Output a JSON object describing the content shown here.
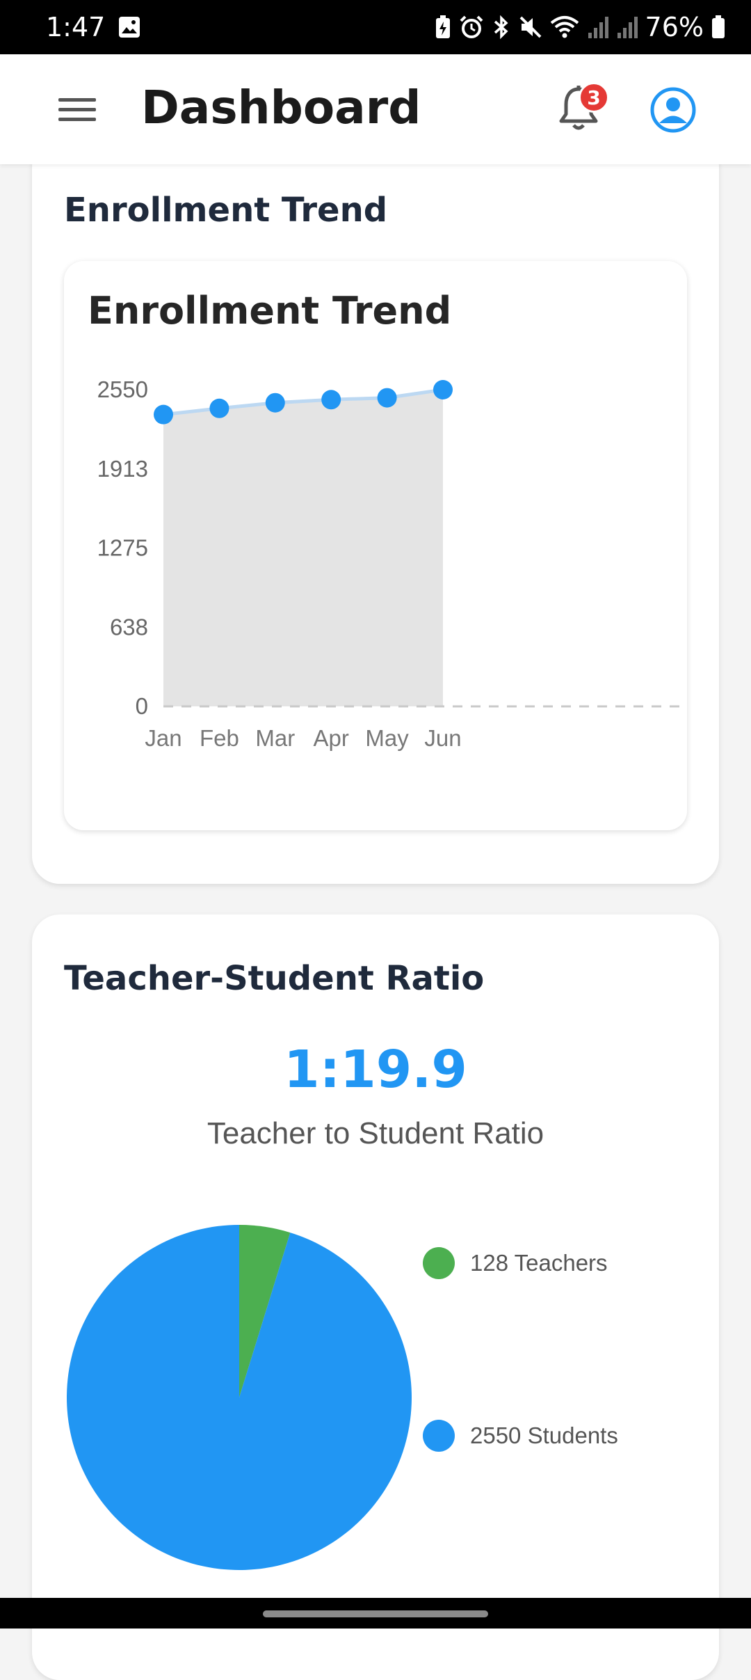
{
  "status_bar": {
    "time": "1:47",
    "battery": "76%",
    "icons": [
      "image-icon",
      "battery-saver-icon",
      "alarm-icon",
      "bluetooth-icon",
      "mute-icon",
      "wifi-icon",
      "signal-icon",
      "signal-icon",
      "battery-icon"
    ]
  },
  "app_bar": {
    "title": "Dashboard",
    "notification_count": "3",
    "icons": [
      "menu-icon",
      "bell-icon",
      "account-icon"
    ]
  },
  "enrollment": {
    "section_title": "Enrollment Trend",
    "chart_title": "Enrollment Trend"
  },
  "ratio": {
    "section_title": "Teacher-Student Ratio",
    "value": "1:19.9",
    "caption": "Teacher to Student Ratio",
    "legend": [
      {
        "label": "128 Teachers",
        "color": "#4caf50"
      },
      {
        "label": "2550 Students",
        "color": "#2196f3"
      }
    ]
  },
  "colors": {
    "accent": "#2196f3",
    "teacher_green": "#4caf50",
    "badge_red": "#e53935",
    "area_fill": "#e4e4e4"
  },
  "chart_data": [
    {
      "type": "area",
      "title": "Enrollment Trend",
      "categories": [
        "Jan",
        "Feb",
        "Mar",
        "Apr",
        "May",
        "Jun"
      ],
      "series": [
        {
          "values": [
            2350,
            2400,
            2445,
            2470,
            2485,
            2550
          ]
        }
      ],
      "y_ticks": [
        "0",
        "638",
        "1275",
        "1913",
        "2550"
      ],
      "ylim": [
        0,
        2550
      ],
      "grid": false
    },
    {
      "type": "pie",
      "categories": [
        "Teachers",
        "Students"
      ],
      "values": [
        128,
        2550
      ],
      "legend_labels": [
        "128 Teachers",
        "2550 Students"
      ],
      "colors": [
        "#4caf50",
        "#2196f3"
      ],
      "legend": "right"
    }
  ]
}
